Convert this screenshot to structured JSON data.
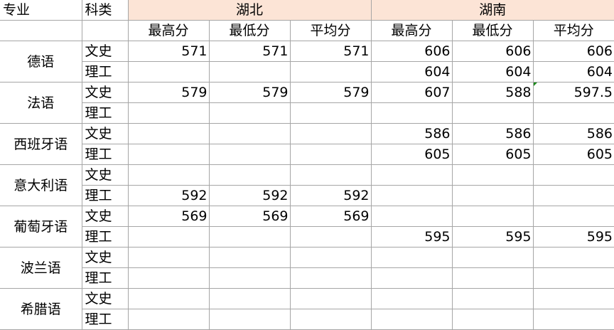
{
  "header": {
    "major_label": "专业",
    "category_label": "科类",
    "regions": [
      "湖北",
      "湖南"
    ],
    "score_labels": [
      "最高分",
      "最低分",
      "平均分"
    ]
  },
  "majors": [
    {
      "name": "德语",
      "rows": [
        {
          "type": "文史",
          "hubei": [
            "571",
            "571",
            "571"
          ],
          "hunan": [
            "606",
            "606",
            "606"
          ]
        },
        {
          "type": "理工",
          "hubei": [
            "",
            "",
            ""
          ],
          "hunan": [
            "604",
            "604",
            "604"
          ]
        }
      ]
    },
    {
      "name": "法语",
      "rows": [
        {
          "type": "文史",
          "hubei": [
            "579",
            "579",
            "579"
          ],
          "hunan": [
            "607",
            "588",
            "597.5"
          ]
        },
        {
          "type": "理工",
          "hubei": [
            "",
            "",
            ""
          ],
          "hunan": [
            "",
            "",
            ""
          ]
        }
      ]
    },
    {
      "name": "西班牙语",
      "rows": [
        {
          "type": "文史",
          "hubei": [
            "",
            "",
            ""
          ],
          "hunan": [
            "586",
            "586",
            "586"
          ]
        },
        {
          "type": "理工",
          "hubei": [
            "",
            "",
            ""
          ],
          "hunan": [
            "605",
            "605",
            "605"
          ]
        }
      ]
    },
    {
      "name": "意大利语",
      "rows": [
        {
          "type": "文史",
          "hubei": [
            "",
            "",
            ""
          ],
          "hunan": [
            "",
            "",
            ""
          ]
        },
        {
          "type": "理工",
          "hubei": [
            "592",
            "592",
            "592"
          ],
          "hunan": [
            "",
            "",
            ""
          ]
        }
      ]
    },
    {
      "name": "葡萄牙语",
      "rows": [
        {
          "type": "文史",
          "hubei": [
            "569",
            "569",
            "569"
          ],
          "hunan": [
            "",
            "",
            ""
          ]
        },
        {
          "type": "理工",
          "hubei": [
            "",
            "",
            ""
          ],
          "hunan": [
            "595",
            "595",
            "595"
          ]
        }
      ]
    },
    {
      "name": "波兰语",
      "rows": [
        {
          "type": "文史",
          "hubei": [
            "",
            "",
            ""
          ],
          "hunan": [
            "",
            "",
            ""
          ]
        },
        {
          "type": "理工",
          "hubei": [
            "",
            "",
            ""
          ],
          "hunan": [
            "",
            "",
            ""
          ]
        }
      ]
    },
    {
      "name": "希腊语",
      "rows": [
        {
          "type": "文史",
          "hubei": [
            "",
            "",
            ""
          ],
          "hunan": [
            "",
            "",
            ""
          ]
        },
        {
          "type": "理工",
          "hubei": [
            "",
            "",
            ""
          ],
          "hunan": [
            "",
            "",
            ""
          ]
        }
      ]
    }
  ],
  "colors": {
    "region_header_bg": "#fce4d6",
    "grid": "#a6a6a6",
    "comment_marker": "#1a8a1a"
  }
}
